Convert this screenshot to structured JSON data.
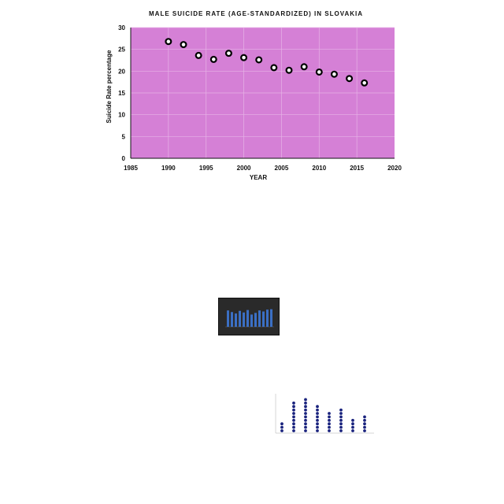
{
  "chart_data": {
    "type": "scatter",
    "title": "MALE SUICIDE RATE (AGE-STANDARDIZED) IN SLOVAKIA",
    "xlabel": "YEAR",
    "ylabel": "Suicide Rate percentage",
    "xlim": [
      1985,
      2020
    ],
    "ylim": [
      0,
      30
    ],
    "xticks": [
      1985,
      1990,
      1995,
      2000,
      2005,
      2010,
      2015,
      2020
    ],
    "yticks": [
      0,
      5,
      10,
      15,
      20,
      25,
      30
    ],
    "grid": true,
    "plot_background": "#d580d6",
    "marker_color": "#ffffff",
    "marker_edge": "#000000",
    "x": [
      1990,
      1992,
      1994,
      1996,
      1998,
      2000,
      2002,
      2004,
      2006,
      2008,
      2010,
      2012,
      2014,
      2016
    ],
    "y": [
      26.8,
      26.1,
      23.6,
      22.7,
      24.1,
      23.1,
      22.6,
      20.8,
      20.2,
      21.0,
      19.8,
      19.3,
      18.3,
      17.3
    ]
  },
  "thumbnails": {
    "dark_bar_chart": {
      "type": "bar",
      "colors": {
        "bg": "#2a2a2a",
        "bar": "#3b6fc4"
      },
      "values": [
        0.8,
        0.72,
        0.65,
        0.78,
        0.7,
        0.82,
        0.6,
        0.68,
        0.8,
        0.75,
        0.84,
        0.86
      ]
    },
    "dot_plot": {
      "type": "dot",
      "colors": {
        "dot": "#1a237e"
      },
      "counts": [
        3,
        9,
        10,
        8,
        6,
        7,
        4,
        5
      ]
    }
  }
}
